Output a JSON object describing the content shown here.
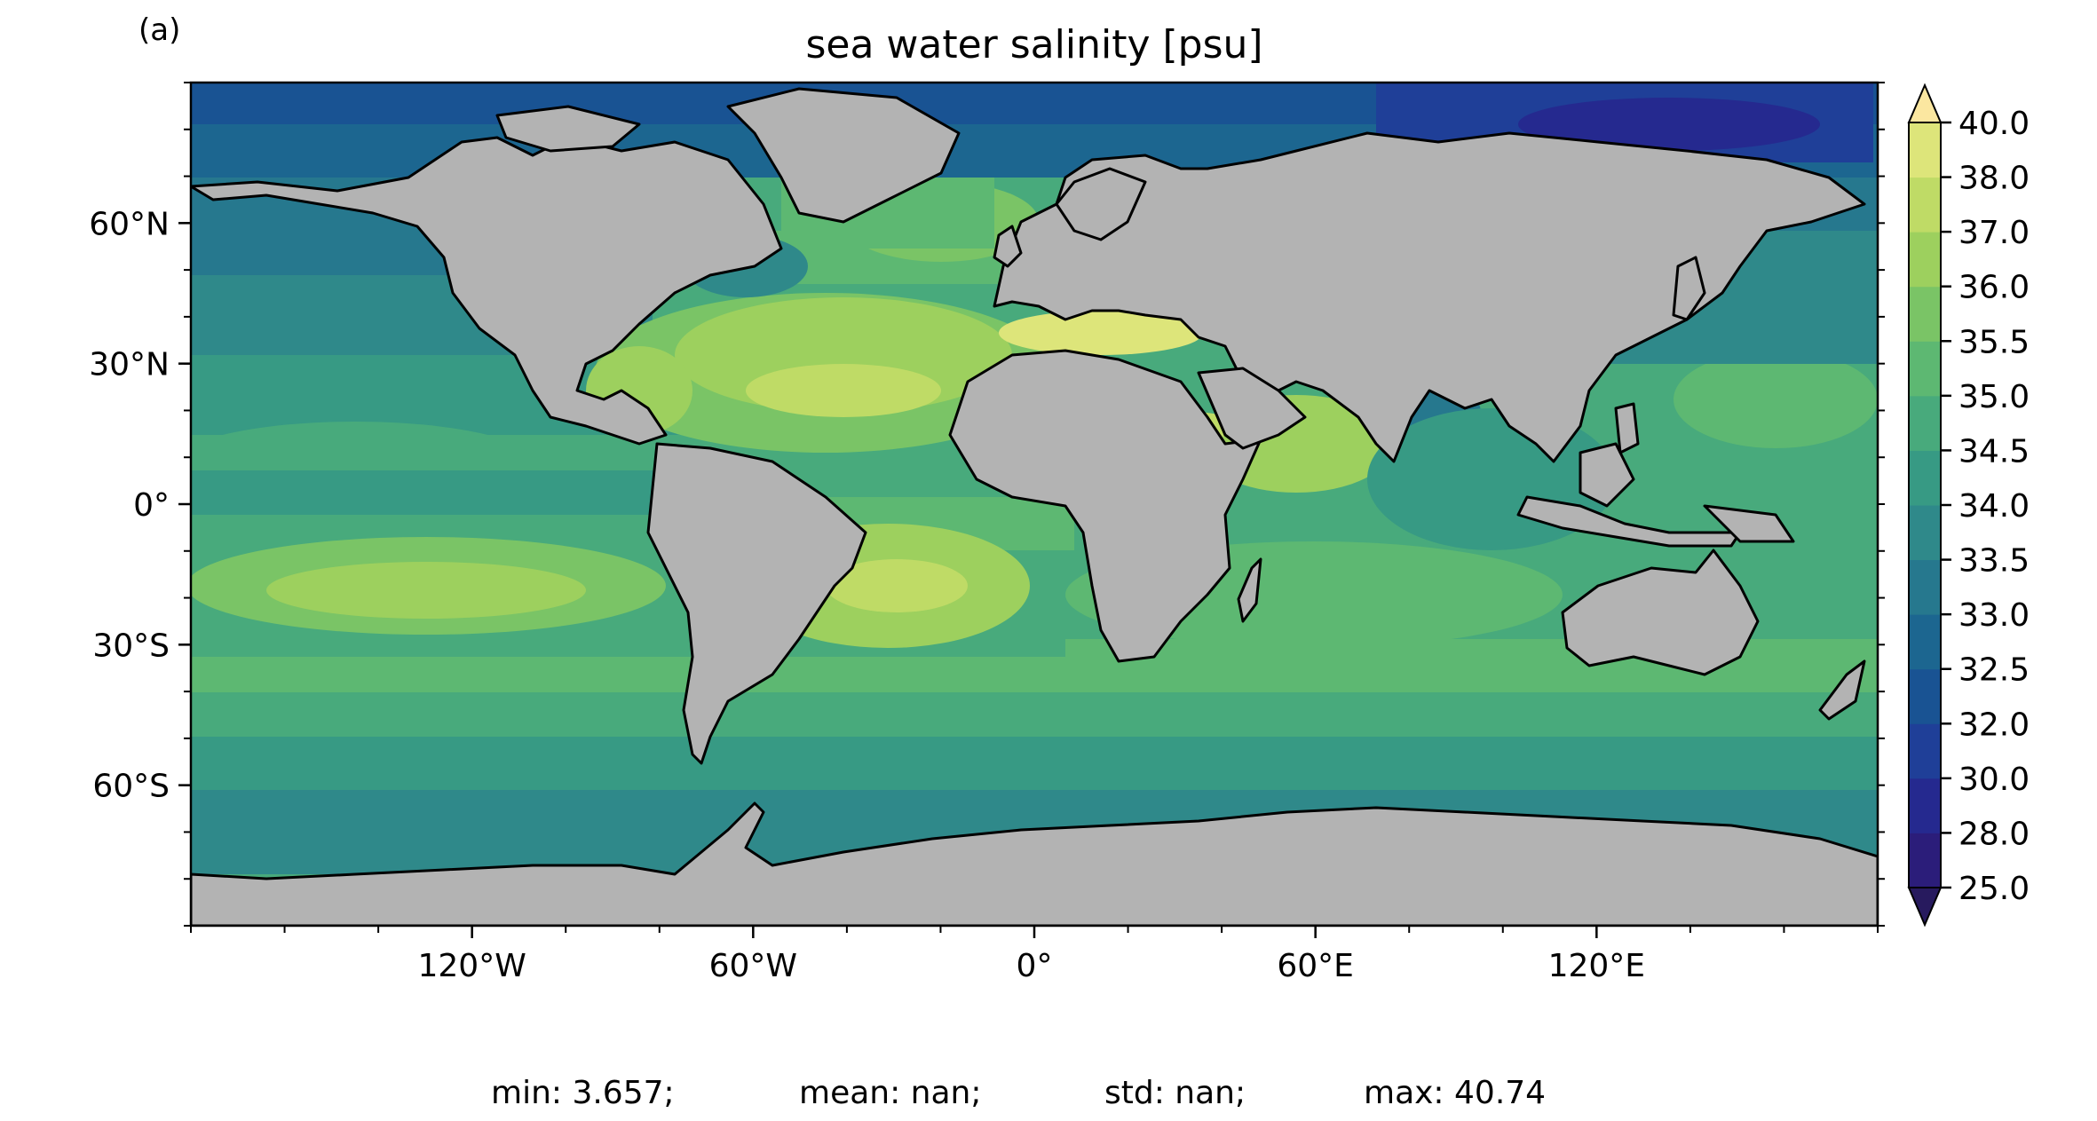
{
  "panel_label": "(a)",
  "title": "sea water salinity [psu]",
  "map": {
    "projection": "plate-carree",
    "lon_range": [
      -180,
      180
    ],
    "lat_range": [
      -90,
      90
    ],
    "land_color": "#b3b3b3",
    "coastline_color": "#000000",
    "x_ticks": [
      {
        "lon": -120,
        "label": "120°W"
      },
      {
        "lon": -60,
        "label": "60°W"
      },
      {
        "lon": 0,
        "label": "0°"
      },
      {
        "lon": 60,
        "label": "60°E"
      },
      {
        "lon": 120,
        "label": "120°E"
      }
    ],
    "y_ticks": [
      {
        "lat": 60,
        "label": "60°N"
      },
      {
        "lat": 30,
        "label": "30°N"
      },
      {
        "lat": 0,
        "label": "0°"
      },
      {
        "lat": -30,
        "label": "30°S"
      },
      {
        "lat": -60,
        "label": "60°S"
      }
    ]
  },
  "colorbar": {
    "extend": "both",
    "levels": [
      {
        "value": "25.0",
        "color": "#2b1d7a"
      },
      {
        "value": "28.0",
        "color": "#25298f"
      },
      {
        "value": "30.0",
        "color": "#1f3f98"
      },
      {
        "value": "32.0",
        "color": "#195393"
      },
      {
        "value": "32.5",
        "color": "#1c6690"
      },
      {
        "value": "33.0",
        "color": "#26788e"
      },
      {
        "value": "33.5",
        "color": "#2f898a"
      },
      {
        "value": "34.0",
        "color": "#379a84"
      },
      {
        "value": "34.5",
        "color": "#48aa7c"
      },
      {
        "value": "35.0",
        "color": "#5db872"
      },
      {
        "value": "35.5",
        "color": "#7ac466"
      },
      {
        "value": "36.0",
        "color": "#9dd05e"
      },
      {
        "value": "37.0",
        "color": "#bfdb66"
      },
      {
        "value": "38.0",
        "color": "#dde57a"
      },
      {
        "value": "40.0",
        "color": "#f5ec9e"
      }
    ],
    "under_color": "#271a5e",
    "over_color": "#fbe7a0"
  },
  "stats": {
    "min": "min: 3.657;",
    "mean": "mean: nan;",
    "std": "std: nan;",
    "max": "max: 40.74"
  }
}
